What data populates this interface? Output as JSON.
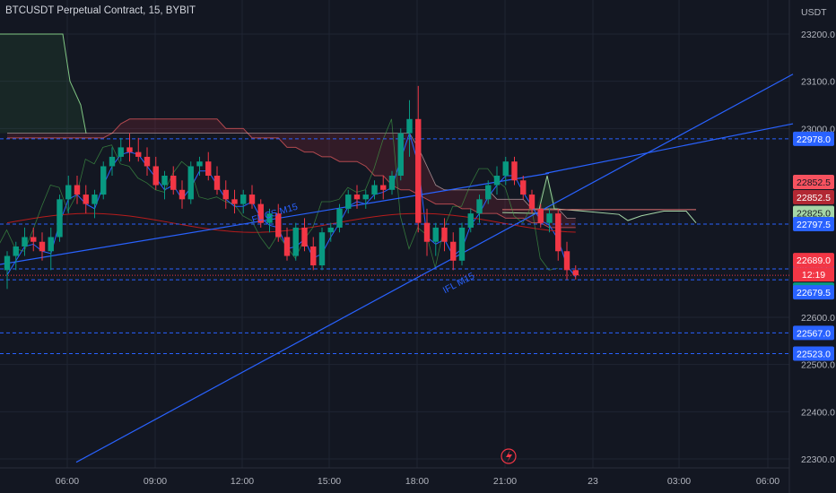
{
  "header": {
    "symbol_line": "BTCUSDT Perpetual Contract, 15, BYBIT",
    "unit": "USDT"
  },
  "chart_data": {
    "type": "candlestick",
    "title": "BTCUSDT Perpetual Contract, 15, BYBIT",
    "ylabel": "USDT",
    "ylim": [
      22292,
      23262
    ],
    "y_ticks": [
      {
        "value": 23200,
        "label": "23200.0"
      },
      {
        "value": 23100,
        "label": "23100.0"
      },
      {
        "value": 23000,
        "label": "23000.0"
      },
      {
        "value": 22600,
        "label": "22600.0"
      },
      {
        "value": 22500,
        "label": "22500.0"
      },
      {
        "value": 22400,
        "label": "22400.0"
      },
      {
        "value": 22300,
        "label": "22300.0"
      }
    ],
    "x_ticks": [
      "06:00",
      "09:00",
      "12:00",
      "15:00",
      "18:00",
      "21:00",
      "23",
      "03:00",
      "06:00"
    ],
    "horizontal_levels": [
      {
        "value": 22978.0,
        "label": "22978.0"
      },
      {
        "value": 22797.5,
        "label": "22797.5"
      },
      {
        "value": 22702.5,
        "label": "22702.5"
      },
      {
        "value": 22679.5,
        "label": "22679.5"
      },
      {
        "value": 22567.0,
        "label": "22567.0"
      },
      {
        "value": 22523.0,
        "label": "22523.0"
      }
    ],
    "price_labels": [
      {
        "value": 22852.5,
        "label": "22852.5",
        "color": "#f7525f"
      },
      {
        "value": 22852.5,
        "label": "22852.5",
        "color": "#b22833"
      },
      {
        "value": 22825.0,
        "label": "22825.0",
        "color": "#a5d6a7"
      },
      {
        "value": 22689.0,
        "label": "22689.0",
        "color": "#f23645"
      },
      {
        "value": 22689.0,
        "label": "22689.0",
        "color": "#089981"
      }
    ],
    "countdown": "12:19",
    "last_price": 22689.0,
    "annotations": [
      "FL CS M15",
      "IFL M15"
    ],
    "candles": [
      [
        22700,
        22740,
        22660,
        22730
      ],
      [
        22730,
        22760,
        22700,
        22750
      ],
      [
        22750,
        22790,
        22730,
        22770
      ],
      [
        22770,
        22790,
        22740,
        22760
      ],
      [
        22760,
        22780,
        22720,
        22740
      ],
      [
        22740,
        22790,
        22700,
        22770
      ],
      [
        22770,
        22860,
        22760,
        22850
      ],
      [
        22850,
        22900,
        22820,
        22880
      ],
      [
        22880,
        22900,
        22840,
        22860
      ],
      [
        22860,
        22880,
        22820,
        22840
      ],
      [
        22840,
        22870,
        22810,
        22860
      ],
      [
        22860,
        22930,
        22850,
        22920
      ],
      [
        22920,
        22960,
        22900,
        22940
      ],
      [
        22940,
        22980,
        22930,
        22960
      ],
      [
        22960,
        22990,
        22930,
        22950
      ],
      [
        22950,
        22980,
        22930,
        22940
      ],
      [
        22940,
        22960,
        22900,
        22920
      ],
      [
        22920,
        22940,
        22870,
        22880
      ],
      [
        22880,
        22910,
        22850,
        22900
      ],
      [
        22900,
        22920,
        22860,
        22870
      ],
      [
        22870,
        22890,
        22830,
        22850
      ],
      [
        22850,
        22930,
        22840,
        22920
      ],
      [
        22920,
        22940,
        22900,
        22930
      ],
      [
        22930,
        22950,
        22890,
        22900
      ],
      [
        22900,
        22920,
        22860,
        22870
      ],
      [
        22870,
        22890,
        22830,
        22850
      ],
      [
        22850,
        22870,
        22820,
        22840
      ],
      [
        22840,
        22870,
        22820,
        22860
      ],
      [
        22860,
        22880,
        22830,
        22840
      ],
      [
        22840,
        22850,
        22790,
        22800
      ],
      [
        22800,
        22830,
        22780,
        22820
      ],
      [
        22820,
        22840,
        22760,
        22770
      ],
      [
        22770,
        22790,
        22720,
        22730
      ],
      [
        22730,
        22800,
        22720,
        22790
      ],
      [
        22790,
        22810,
        22740,
        22750
      ],
      [
        22750,
        22770,
        22700,
        22710
      ],
      [
        22710,
        22790,
        22700,
        22780
      ],
      [
        22780,
        22800,
        22760,
        22790
      ],
      [
        22790,
        22840,
        22780,
        22830
      ],
      [
        22830,
        22870,
        22820,
        22860
      ],
      [
        22860,
        22880,
        22830,
        22850
      ],
      [
        22850,
        22870,
        22830,
        22860
      ],
      [
        22860,
        22890,
        22850,
        22880
      ],
      [
        22880,
        22900,
        22850,
        22870
      ],
      [
        22870,
        22910,
        22860,
        22900
      ],
      [
        22900,
        23000,
        22890,
        22990
      ],
      [
        22990,
        23060,
        22940,
        23020
      ],
      [
        23020,
        23090,
        22780,
        22800
      ],
      [
        22800,
        22830,
        22730,
        22760
      ],
      [
        22760,
        22800,
        22730,
        22790
      ],
      [
        22790,
        22810,
        22740,
        22760
      ],
      [
        22760,
        22780,
        22700,
        22720
      ],
      [
        22720,
        22800,
        22710,
        22790
      ],
      [
        22790,
        22830,
        22780,
        22820
      ],
      [
        22820,
        22860,
        22800,
        22850
      ],
      [
        22850,
        22890,
        22840,
        22880
      ],
      [
        22880,
        22920,
        22860,
        22900
      ],
      [
        22900,
        22940,
        22880,
        22930
      ],
      [
        22930,
        22940,
        22880,
        22890
      ],
      [
        22890,
        22900,
        22850,
        22860
      ],
      [
        22860,
        22870,
        22820,
        22830
      ],
      [
        22830,
        22840,
        22790,
        22800
      ],
      [
        22800,
        22830,
        22780,
        22820
      ],
      [
        22820,
        22830,
        22720,
        22740
      ],
      [
        22740,
        22760,
        22680,
        22700
      ],
      [
        22700,
        22710,
        22680,
        22689
      ]
    ],
    "ichimoku_cloud": {
      "span_a": [
        22990,
        22990,
        22990,
        22990,
        22990,
        22990,
        22990,
        22990,
        22990,
        22990,
        22990,
        22990,
        22990,
        22990,
        22990,
        22990,
        22990,
        22990,
        22990,
        22990,
        22990,
        22990,
        22990,
        22990,
        22990,
        22990,
        22990,
        22990,
        22990,
        22990,
        22990,
        22990,
        22990,
        22990,
        22990,
        22990,
        22990,
        22990,
        22990,
        22990,
        22990,
        22990,
        22990,
        22990,
        22990,
        22990,
        22990,
        22960,
        22920,
        22880,
        22870,
        22870,
        22870,
        22870,
        22870,
        22870,
        22850,
        22850,
        22850,
        22850,
        22830,
        22830,
        22830,
        22830,
        22810,
        22810
      ],
      "span_b": [
        22980,
        22980,
        22980,
        22980,
        22980,
        22980,
        22980,
        22980,
        22980,
        22980,
        22980,
        22980,
        22990,
        23010,
        23020,
        23020,
        23020,
        23020,
        23020,
        23020,
        23020,
        23020,
        23020,
        23020,
        23020,
        23000,
        23000,
        23000,
        22980,
        22980,
        22980,
        22980,
        22960,
        22960,
        22950,
        22950,
        22940,
        22940,
        22930,
        22930,
        22930,
        22920,
        22900,
        22900,
        22880,
        22870,
        22870,
        22860,
        22850,
        22840,
        22840,
        22840,
        22830,
        22830,
        22820,
        22820,
        22820,
        22810,
        22810,
        22810,
        22800,
        22800,
        22790,
        22790,
        22790,
        22790
      ]
    }
  }
}
